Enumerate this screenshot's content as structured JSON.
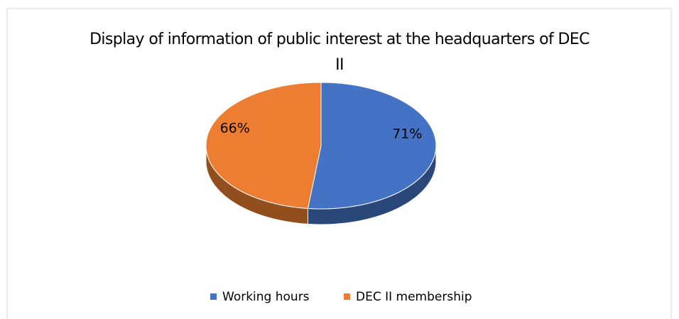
{
  "chart_data": {
    "type": "pie",
    "title": "Display of information of public interest at the headquarters of DEC II",
    "categories": [
      "Working hours",
      "DEC II membership"
    ],
    "values": [
      71,
      66
    ],
    "value_labels": [
      "71%",
      "66%"
    ],
    "colors": [
      "#4472c4",
      "#ed7d31"
    ],
    "legend": "bottom"
  }
}
